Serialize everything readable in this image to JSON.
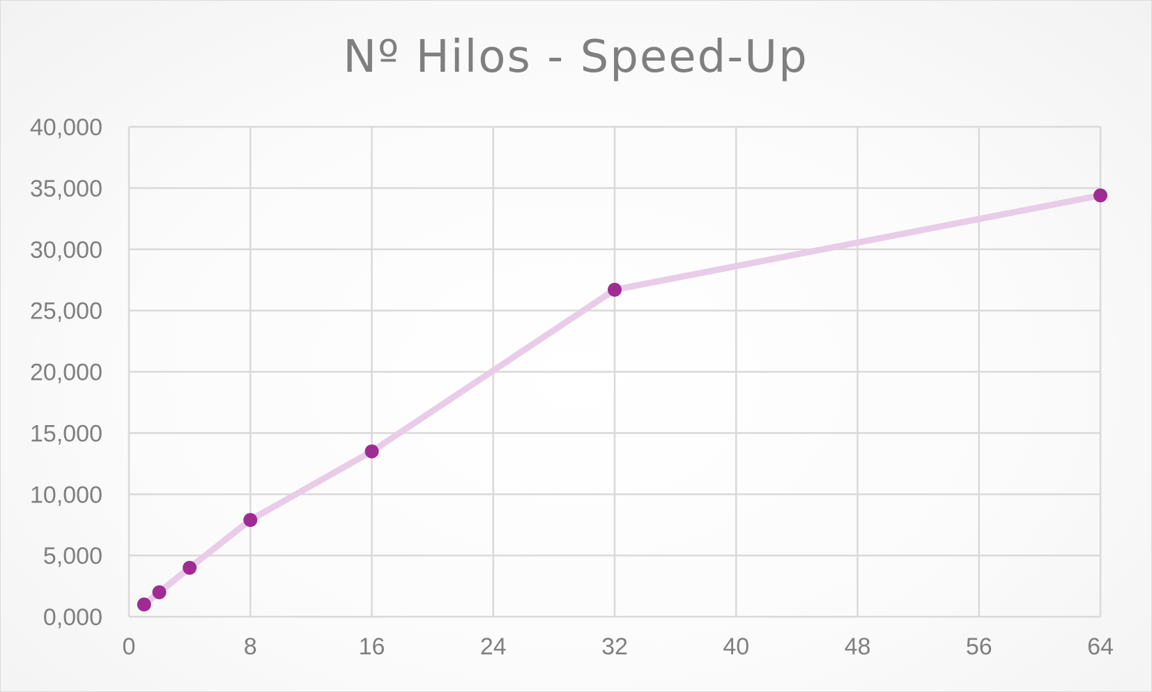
{
  "chart_data": {
    "type": "scatter",
    "title": "Nº Hilos - Speed-Up",
    "xlabel": "",
    "ylabel": "",
    "xlim": [
      0,
      64
    ],
    "ylim": [
      0,
      40
    ],
    "x_ticks": [
      0,
      8,
      16,
      24,
      32,
      40,
      48,
      56,
      64
    ],
    "x_tick_labels": [
      "0",
      "8",
      "16",
      "24",
      "32",
      "40",
      "48",
      "56",
      "64"
    ],
    "y_ticks": [
      0,
      5,
      10,
      15,
      20,
      25,
      30,
      35,
      40
    ],
    "y_tick_labels": [
      "0,000",
      "5,000",
      "10,000",
      "15,000",
      "20,000",
      "25,000",
      "30,000",
      "35,000",
      "40,000"
    ],
    "grid": true,
    "legend": "none",
    "series": [
      {
        "x": [
          1,
          2,
          4,
          8,
          16,
          32,
          64
        ],
        "y": [
          1.0,
          2.0,
          4.0,
          7.9,
          13.5,
          26.7,
          34.4
        ],
        "line_color": "#e8cce8",
        "marker_color": "#a02b93"
      }
    ]
  }
}
